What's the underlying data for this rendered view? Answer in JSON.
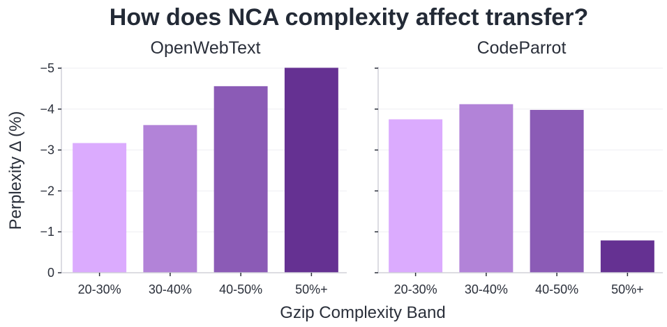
{
  "chart_data": {
    "title": "How does NCA complexity affect transfer?",
    "xlabel": "Gzip Complexity Band",
    "ylabel": "Perplexity Δ (%)",
    "type": "bar",
    "categories": [
      "20-30%",
      "30-40%",
      "40-50%",
      "50%+"
    ],
    "colors": [
      "#dbabfe",
      "#b283d8",
      "#8b5bb6",
      "#653192"
    ],
    "ylim": [
      0,
      -5
    ],
    "yticks": [
      0,
      -1,
      -2,
      -3,
      -4,
      -5
    ],
    "ytick_labels": [
      "0",
      "−1",
      "−2",
      "−3",
      "−4",
      "−5"
    ],
    "shared_y": true,
    "grid": "horizontal",
    "panels": [
      {
        "title": "OpenWebText",
        "values": [
          -3.17,
          -3.61,
          -4.56,
          -5.01
        ]
      },
      {
        "title": "CodeParrot",
        "values": [
          -3.75,
          -4.12,
          -3.98,
          -0.79
        ]
      }
    ]
  }
}
